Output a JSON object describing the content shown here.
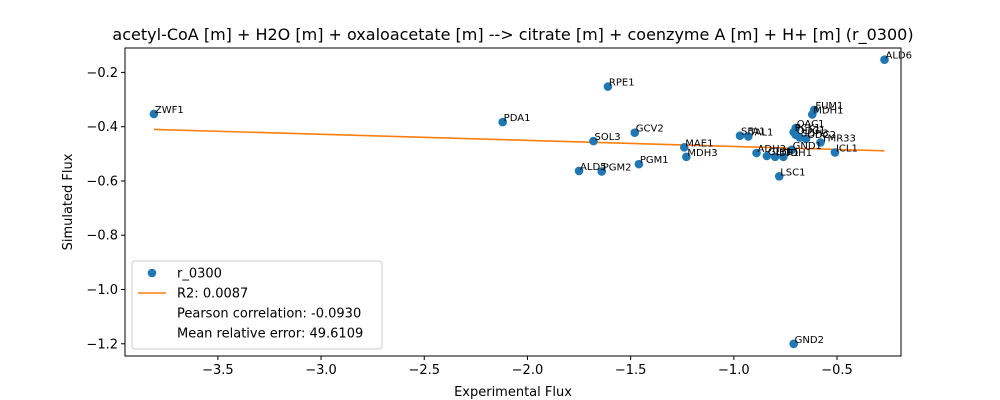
{
  "chart_data": {
    "type": "scatter",
    "title": "acetyl-CoA [m] + H2O [m] + oxaloacetate [m] --> citrate [m] + coenzyme A [m] + H+ [m] (r_0300)",
    "xlabel": "Experimental Flux",
    "ylabel": "Simulated Flux",
    "xlim": [
      -3.95,
      -0.19
    ],
    "ylim": [
      -1.245,
      -0.11
    ],
    "xticks": [
      -3.5,
      -3.0,
      -2.5,
      -2.0,
      -1.5,
      -1.0,
      -0.5
    ],
    "xtick_labels": [
      "−3.5",
      "−3.0",
      "−2.5",
      "−2.0",
      "−1.5",
      "−1.0",
      "−0.5"
    ],
    "yticks": [
      -1.2,
      -1.0,
      -0.8,
      -0.6,
      -0.4,
      -0.2
    ],
    "ytick_labels": [
      "−1.2",
      "−1.0",
      "−0.8",
      "−0.6",
      "−0.4",
      "−0.2"
    ],
    "grid": false,
    "legend_position": "lower-left",
    "colors": {
      "points": "#1f77b4",
      "fit": "#ff7f0e"
    },
    "series": [
      {
        "name": "r_0300",
        "kind": "scatter",
        "points": [
          {
            "label": "ZWF1",
            "x": -3.81,
            "y": -0.353
          },
          {
            "label": "PDA1",
            "x": -2.12,
            "y": -0.383
          },
          {
            "label": "RPE1",
            "x": -1.61,
            "y": -0.252
          },
          {
            "label": "ALD6",
            "x": -0.27,
            "y": -0.153
          },
          {
            "label": "GCV2",
            "x": -1.48,
            "y": -0.422
          },
          {
            "label": "SOL3",
            "x": -1.68,
            "y": -0.453
          },
          {
            "label": "ALD5",
            "x": -1.75,
            "y": -0.563
          },
          {
            "label": "PGM2",
            "x": -1.64,
            "y": -0.565
          },
          {
            "label": "PGM1",
            "x": -1.46,
            "y": -0.538
          },
          {
            "label": "MAE1",
            "x": -1.24,
            "y": -0.476
          },
          {
            "label": "MDH3",
            "x": -1.23,
            "y": -0.511
          },
          {
            "label": "SFA1",
            "x": -0.97,
            "y": -0.433
          },
          {
            "label": "TAL1",
            "x": -0.93,
            "y": -0.436
          },
          {
            "label": "ADH3",
            "x": -0.89,
            "y": -0.497
          },
          {
            "label": "GLY1",
            "x": -0.84,
            "y": -0.508
          },
          {
            "label": "IDP1",
            "x": -0.8,
            "y": -0.511
          },
          {
            "label": "TDH1",
            "x": -0.76,
            "y": -0.511
          },
          {
            "label": "GND1",
            "x": -0.72,
            "y": -0.485
          },
          {
            "label": "LSC1",
            "x": -0.78,
            "y": -0.583
          },
          {
            "label": "FUM1",
            "x": -0.61,
            "y": -0.338
          },
          {
            "label": "MDH1",
            "x": -0.62,
            "y": -0.355
          },
          {
            "label": "OAC1",
            "x": -0.7,
            "y": -0.405
          },
          {
            "label": "PCK1",
            "x": -0.71,
            "y": -0.42
          },
          {
            "label": "ODC1",
            "x": -0.7,
            "y": -0.43
          },
          {
            "label": "SDH3",
            "x": -0.68,
            "y": -0.44
          },
          {
            "label": "ODC2",
            "x": -0.65,
            "y": -0.445
          },
          {
            "label": "YMR33",
            "x": -0.58,
            "y": -0.458
          },
          {
            "label": "ICL1",
            "x": -0.51,
            "y": -0.495
          },
          {
            "label": "GND2",
            "x": -0.71,
            "y": -1.2
          }
        ]
      },
      {
        "name": "R2: 0.0087",
        "kind": "line",
        "x": [
          -3.81,
          -0.27
        ],
        "y": [
          -0.41,
          -0.489
        ]
      }
    ],
    "legend": [
      {
        "text": "r_0300",
        "marker": "point"
      },
      {
        "text": "R2: 0.0087",
        "marker": "line"
      },
      {
        "text": "Pearson correlation: -0.0930",
        "marker": "none"
      },
      {
        "text": "Mean relative error: 49.6109",
        "marker": "none"
      }
    ]
  }
}
